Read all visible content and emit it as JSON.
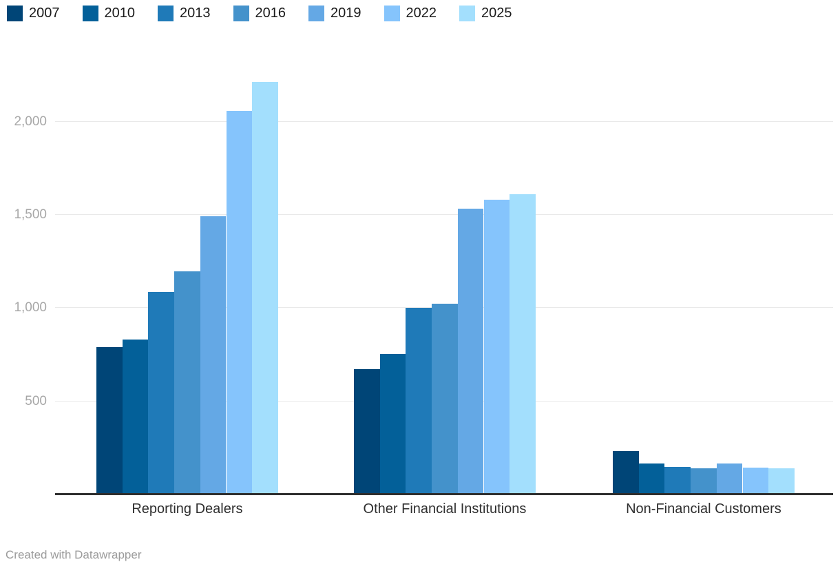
{
  "chart_data": {
    "type": "bar",
    "title": "",
    "categories": [
      "Reporting Dealers",
      "Other Financial Institutions",
      "Non-Financial Customers"
    ],
    "series": [
      {
        "name": "2007",
        "color": "#004577",
        "values": [
          790,
          670,
          230
        ]
      },
      {
        "name": "2010",
        "color": "#036099",
        "values": [
          830,
          750,
          165
        ]
      },
      {
        "name": "2013",
        "color": "#1f7ab8",
        "values": [
          1085,
          1000,
          145
        ]
      },
      {
        "name": "2016",
        "color": "#4492cb",
        "values": [
          1195,
          1020,
          137
        ]
      },
      {
        "name": "2019",
        "color": "#64a8e5",
        "values": [
          1490,
          1530,
          165
        ]
      },
      {
        "name": "2022",
        "color": "#85c4fc",
        "values": [
          2055,
          1580,
          142
        ]
      },
      {
        "name": "2025",
        "color": "#a3dffd",
        "values": [
          2210,
          1610,
          140
        ]
      }
    ],
    "y_ticks": [
      {
        "label": "500",
        "value": 500
      },
      {
        "label": "1,000",
        "value": 1000
      },
      {
        "label": "1,500",
        "value": 1500
      },
      {
        "label": "2,000",
        "value": 2000
      }
    ],
    "ylim": [
      0,
      2300
    ],
    "grid": true,
    "legend_position": "top",
    "xlabel": "",
    "ylabel": ""
  },
  "footer": {
    "credit": "Created with Datawrapper"
  }
}
